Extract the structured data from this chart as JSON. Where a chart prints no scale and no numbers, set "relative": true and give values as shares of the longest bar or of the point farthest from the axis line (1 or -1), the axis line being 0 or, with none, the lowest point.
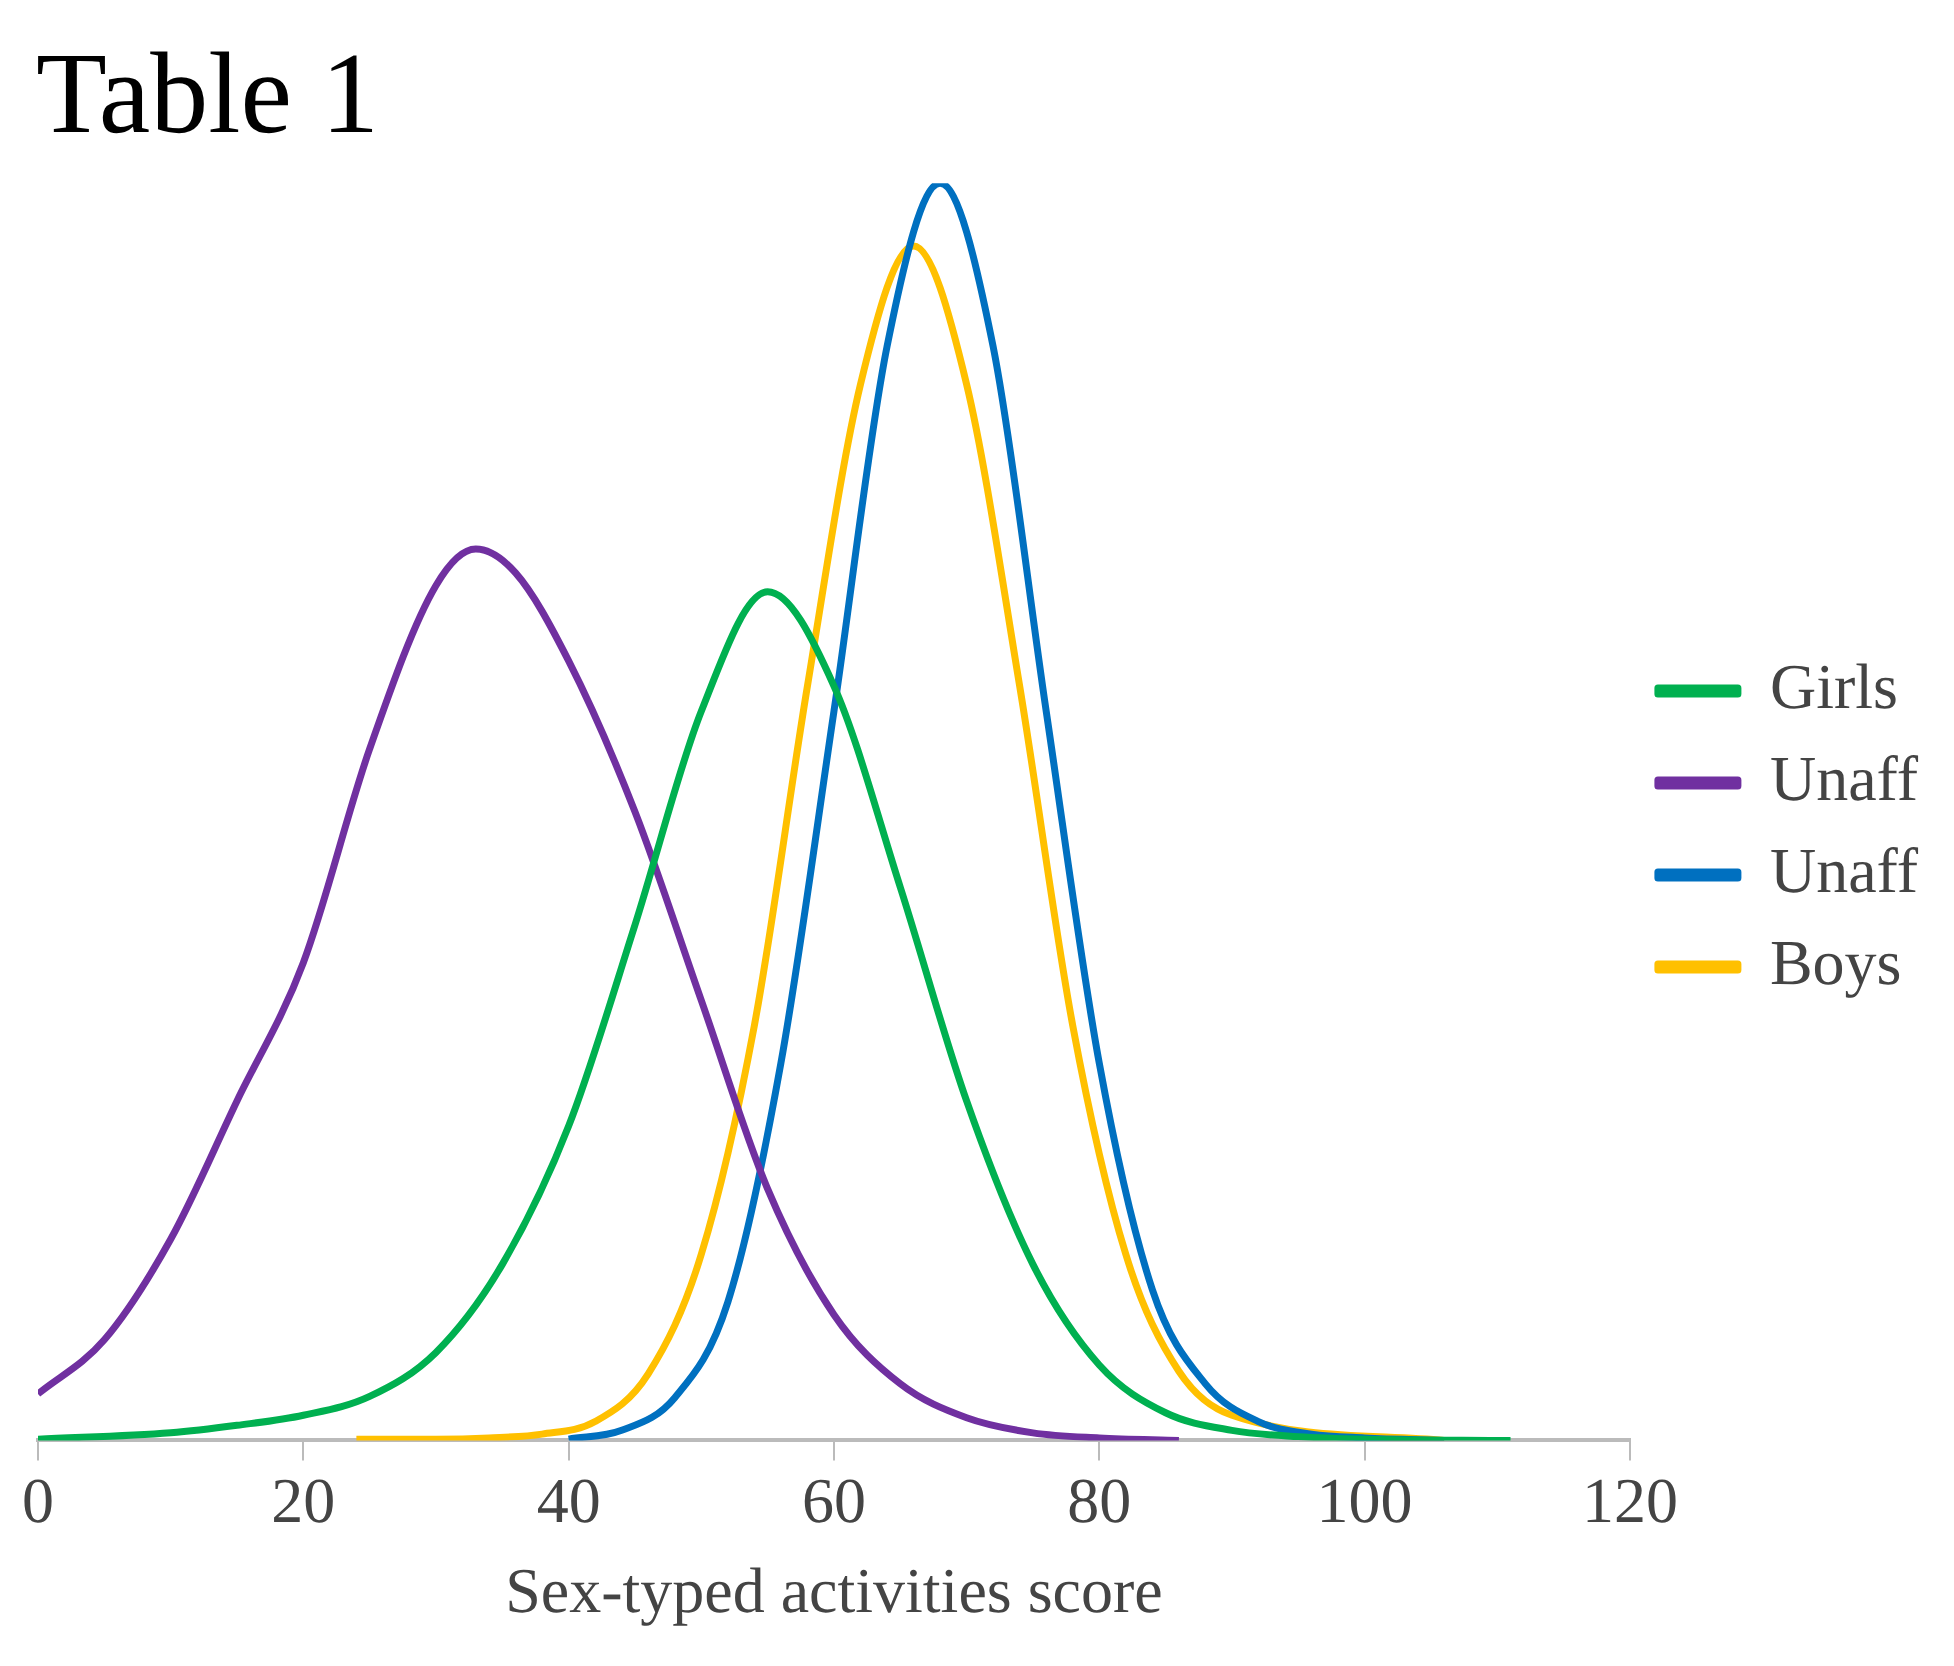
{
  "chart_data": {
    "type": "line",
    "title": "Table 1",
    "xlabel": "Sex-typed activities score",
    "relative": true,
    "xlim": [
      0,
      120
    ],
    "xticks": [
      0,
      20,
      40,
      60,
      80,
      100,
      120
    ],
    "grid": false,
    "legend": "right",
    "marker": "none",
    "line_style": "solid",
    "series": [
      {
        "name": "Girls",
        "color": "#00b050",
        "x": [
          0,
          10,
          15,
          20,
          25,
          30,
          35,
          40,
          45,
          50,
          55,
          60,
          65,
          70,
          75,
          80,
          85,
          90,
          95,
          100,
          111
        ],
        "values": [
          0.001,
          0.006,
          0.012,
          0.02,
          0.035,
          0.07,
          0.14,
          0.25,
          0.41,
          0.58,
          0.675,
          0.6,
          0.44,
          0.27,
          0.14,
          0.06,
          0.022,
          0.008,
          0.003,
          0.001,
          0
        ]
      },
      {
        "name": "Unaff",
        "color": "#7030a0",
        "x": [
          0,
          5,
          10,
          15,
          20,
          25,
          30,
          33,
          36,
          40,
          45,
          50,
          55,
          60,
          65,
          70,
          75,
          80,
          86
        ],
        "values": [
          0.037,
          0.08,
          0.16,
          0.27,
          0.38,
          0.55,
          0.68,
          0.709,
          0.69,
          0.62,
          0.5,
          0.35,
          0.2,
          0.1,
          0.045,
          0.018,
          0.006,
          0.002,
          0
        ]
      },
      {
        "name": "Unaff",
        "color": "#0070c0",
        "x": [
          40,
          44,
          48,
          52,
          56,
          60,
          64,
          68,
          72,
          76,
          80,
          84,
          88,
          92,
          96,
          100,
          106
        ],
        "values": [
          0.001,
          0.008,
          0.034,
          0.11,
          0.3,
          0.58,
          0.87,
          1,
          0.87,
          0.58,
          0.3,
          0.12,
          0.045,
          0.015,
          0.005,
          0.002,
          0
        ]
      },
      {
        "name": "Boys",
        "color": "#ffc000",
        "x": [
          24,
          30,
          34,
          38,
          42,
          46,
          50,
          54,
          58,
          62,
          66,
          70,
          74,
          78,
          82,
          86,
          90,
          94,
          100,
          106
        ],
        "values": [
          0.001,
          0.001,
          0.002,
          0.005,
          0.015,
          0.053,
          0.148,
          0.33,
          0.6,
          0.84,
          0.95,
          0.84,
          0.6,
          0.33,
          0.148,
          0.055,
          0.02,
          null,
          null,
          0
        ]
      }
    ]
  }
}
